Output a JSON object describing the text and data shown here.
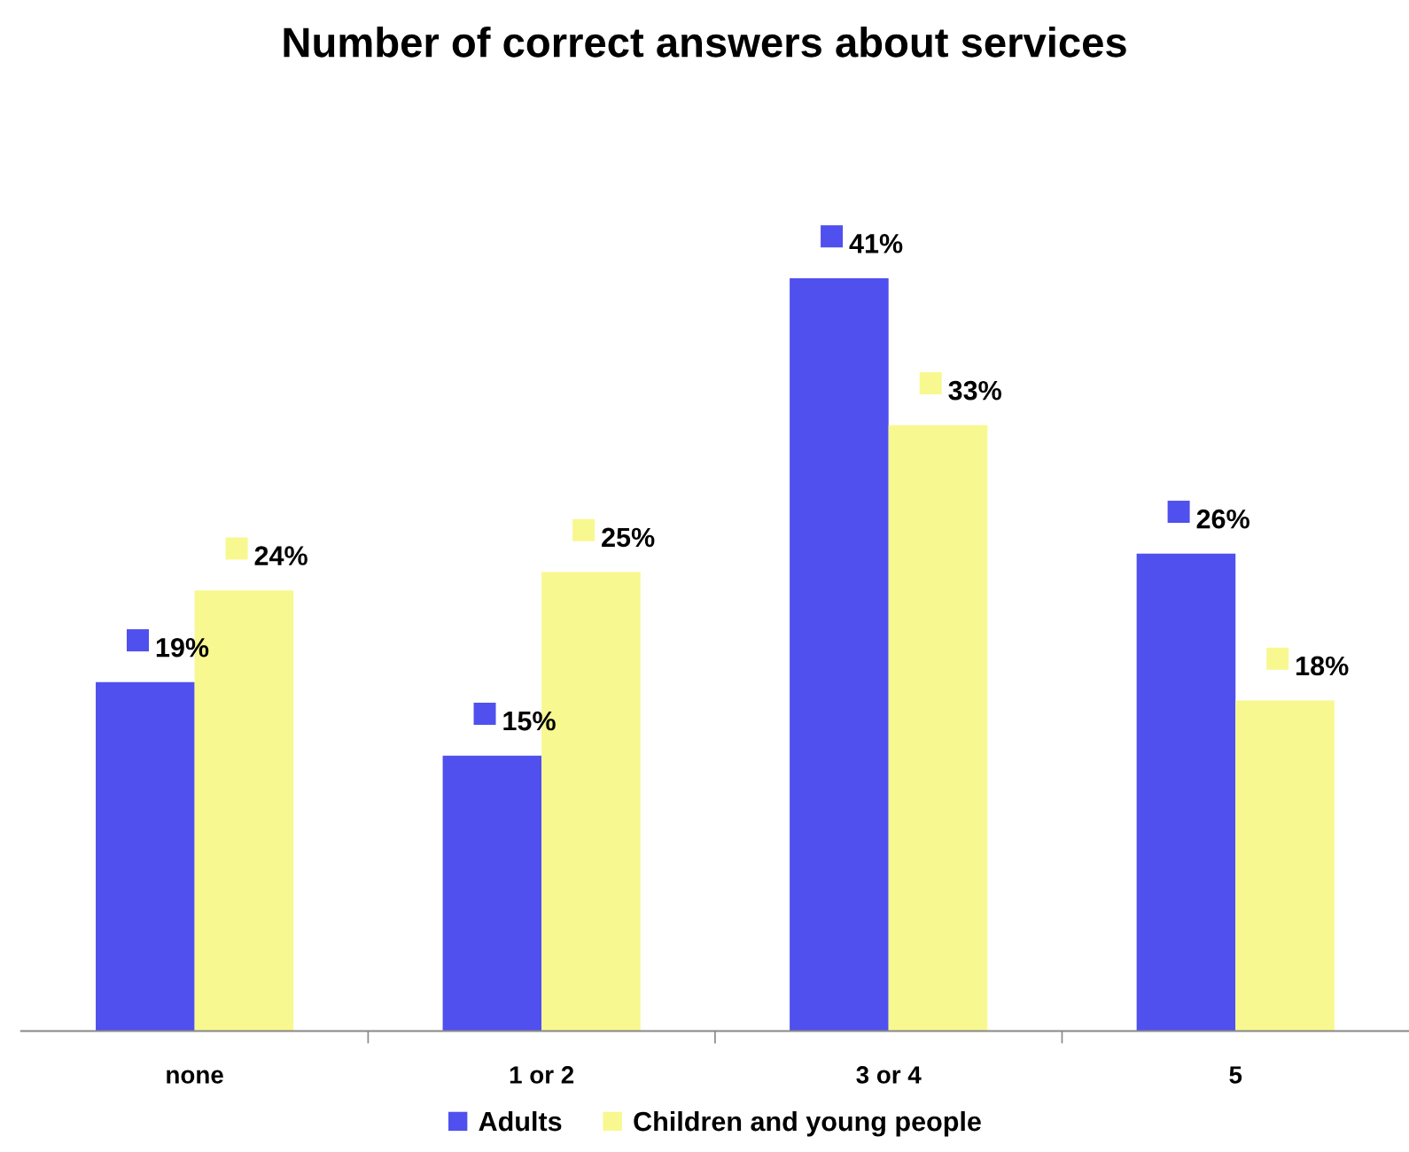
{
  "chart_data": {
    "type": "bar",
    "title": "Number of correct answers about services",
    "categories": [
      "none",
      "1 or 2",
      "3 or 4",
      "5"
    ],
    "series": [
      {
        "name": "Adults",
        "color": "#5050ee",
        "values": [
          19,
          15,
          41,
          26
        ],
        "value_labels": [
          "19%",
          "15%",
          "41%",
          "26%"
        ]
      },
      {
        "name": "Children and young people",
        "color": "#f8f890",
        "values": [
          24,
          25,
          33,
          18
        ],
        "value_labels": [
          "24%",
          "25%",
          "33%",
          "18%"
        ]
      }
    ],
    "relative": false,
    "legend": "bottom",
    "grid": false
  }
}
